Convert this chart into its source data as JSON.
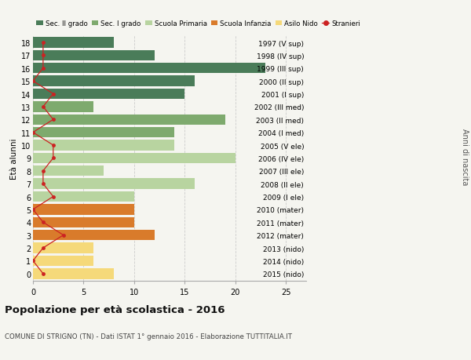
{
  "ages": [
    18,
    17,
    16,
    15,
    14,
    13,
    12,
    11,
    10,
    9,
    8,
    7,
    6,
    5,
    4,
    3,
    2,
    1,
    0
  ],
  "right_labels": [
    "1997 (V sup)",
    "1998 (IV sup)",
    "1999 (III sup)",
    "2000 (II sup)",
    "2001 (I sup)",
    "2002 (III med)",
    "2003 (II med)",
    "2004 (I med)",
    "2005 (V ele)",
    "2006 (IV ele)",
    "2007 (III ele)",
    "2008 (II ele)",
    "2009 (I ele)",
    "2010 (mater)",
    "2011 (mater)",
    "2012 (mater)",
    "2013 (nido)",
    "2014 (nido)",
    "2015 (nido)"
  ],
  "bar_values": [
    8,
    12,
    23,
    16,
    15,
    6,
    19,
    14,
    14,
    20,
    7,
    16,
    10,
    10,
    10,
    12,
    6,
    6,
    8
  ],
  "bar_colors": [
    "#4a7c59",
    "#4a7c59",
    "#4a7c59",
    "#4a7c59",
    "#4a7c59",
    "#7eaa6e",
    "#7eaa6e",
    "#7eaa6e",
    "#b8d4a0",
    "#b8d4a0",
    "#b8d4a0",
    "#b8d4a0",
    "#b8d4a0",
    "#d97b2b",
    "#d97b2b",
    "#d97b2b",
    "#f5d97a",
    "#f5d97a",
    "#f5d97a"
  ],
  "stranieri_values": [
    1,
    1,
    1,
    0,
    2,
    1,
    2,
    0,
    2,
    2,
    1,
    1,
    2,
    0,
    1,
    3,
    1,
    0,
    1
  ],
  "legend_labels": [
    "Sec. II grado",
    "Sec. I grado",
    "Scuola Primaria",
    "Scuola Infanzia",
    "Asilo Nido",
    "Stranieri"
  ],
  "legend_colors": [
    "#4a7c59",
    "#7eaa6e",
    "#b8d4a0",
    "#d97b2b",
    "#f5d97a",
    "#cc2222"
  ],
  "title": "Popolazione per età scolastica - 2016",
  "subtitle": "COMUNE DI STRIGNO (TN) - Dati ISTAT 1° gennaio 2016 - Elaborazione TUTTITALIA.IT",
  "ylabel_left": "Età alunni",
  "ylabel_right": "Anni di nascita",
  "xlim": [
    0,
    27
  ],
  "xticks": [
    0,
    5,
    10,
    15,
    20,
    25
  ],
  "background_color": "#f5f5f0",
  "grid_color": "#cccccc"
}
